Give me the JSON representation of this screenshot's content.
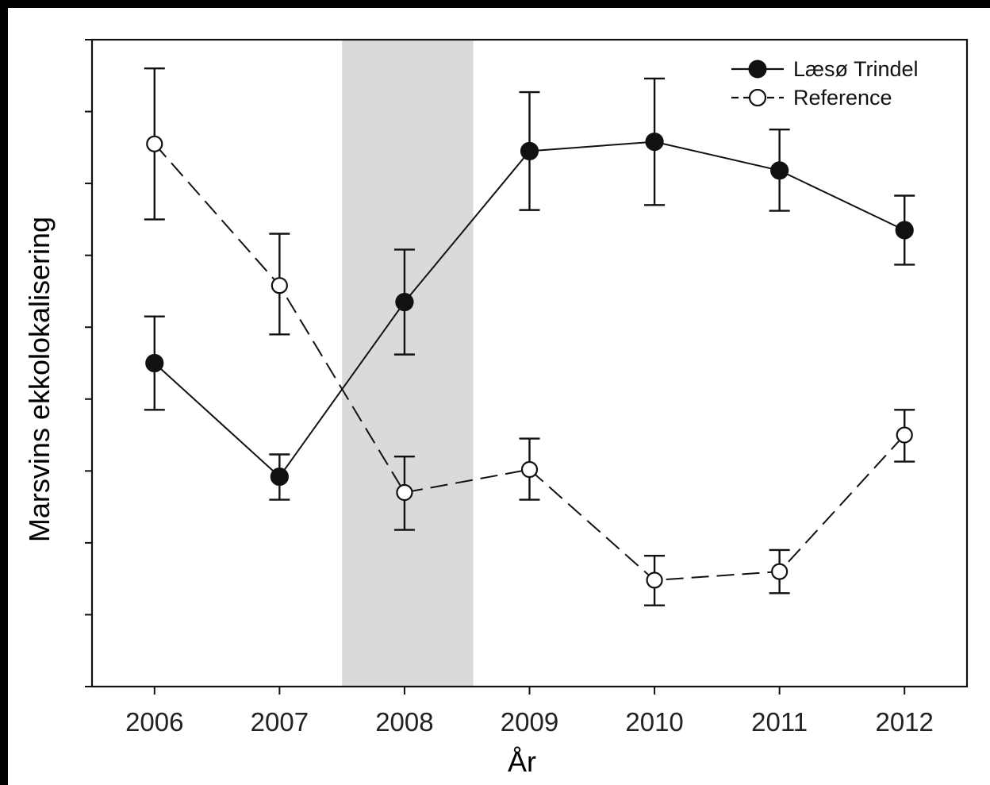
{
  "chart_data": {
    "type": "line",
    "title": "",
    "xlabel": "År",
    "ylabel": "Marsvins ekkolokalisering",
    "x": [
      2006,
      2007,
      2008,
      2009,
      2010,
      2011,
      2012
    ],
    "x_tick_labels": [
      "2006",
      "2007",
      "2008",
      "2009",
      "2010",
      "2011",
      "2012"
    ],
    "xlim": [
      2005.5,
      2012.5
    ],
    "ylim": [
      0,
      9
    ],
    "y_ticks": [
      0,
      1,
      2,
      3,
      4,
      5,
      6,
      7,
      8,
      9
    ],
    "y_tick_labels_shown": false,
    "grid": false,
    "legend_position": "top-right",
    "shaded_region": {
      "x_start": 2007.5,
      "x_end": 2008.55,
      "color": "#d9dadc"
    },
    "series": [
      {
        "name": "Læsø Trindel",
        "marker": "filled-circle",
        "line_style": "solid",
        "color": "#111111",
        "values": [
          4.5,
          2.92,
          5.35,
          7.45,
          7.58,
          7.18,
          6.35
        ],
        "error_low": [
          3.85,
          2.6,
          4.62,
          6.63,
          6.7,
          6.62,
          5.87
        ],
        "error_high": [
          5.15,
          3.23,
          6.08,
          8.27,
          8.46,
          7.75,
          6.83
        ]
      },
      {
        "name": "Reference",
        "marker": "open-circle",
        "line_style": "dashed",
        "color": "#111111",
        "values": [
          7.55,
          5.58,
          2.7,
          3.02,
          1.48,
          1.6,
          3.5
        ],
        "error_low": [
          6.5,
          4.9,
          2.18,
          2.6,
          1.13,
          1.3,
          3.13
        ],
        "error_high": [
          8.6,
          6.3,
          3.2,
          3.45,
          1.82,
          1.9,
          3.85
        ]
      }
    ]
  }
}
